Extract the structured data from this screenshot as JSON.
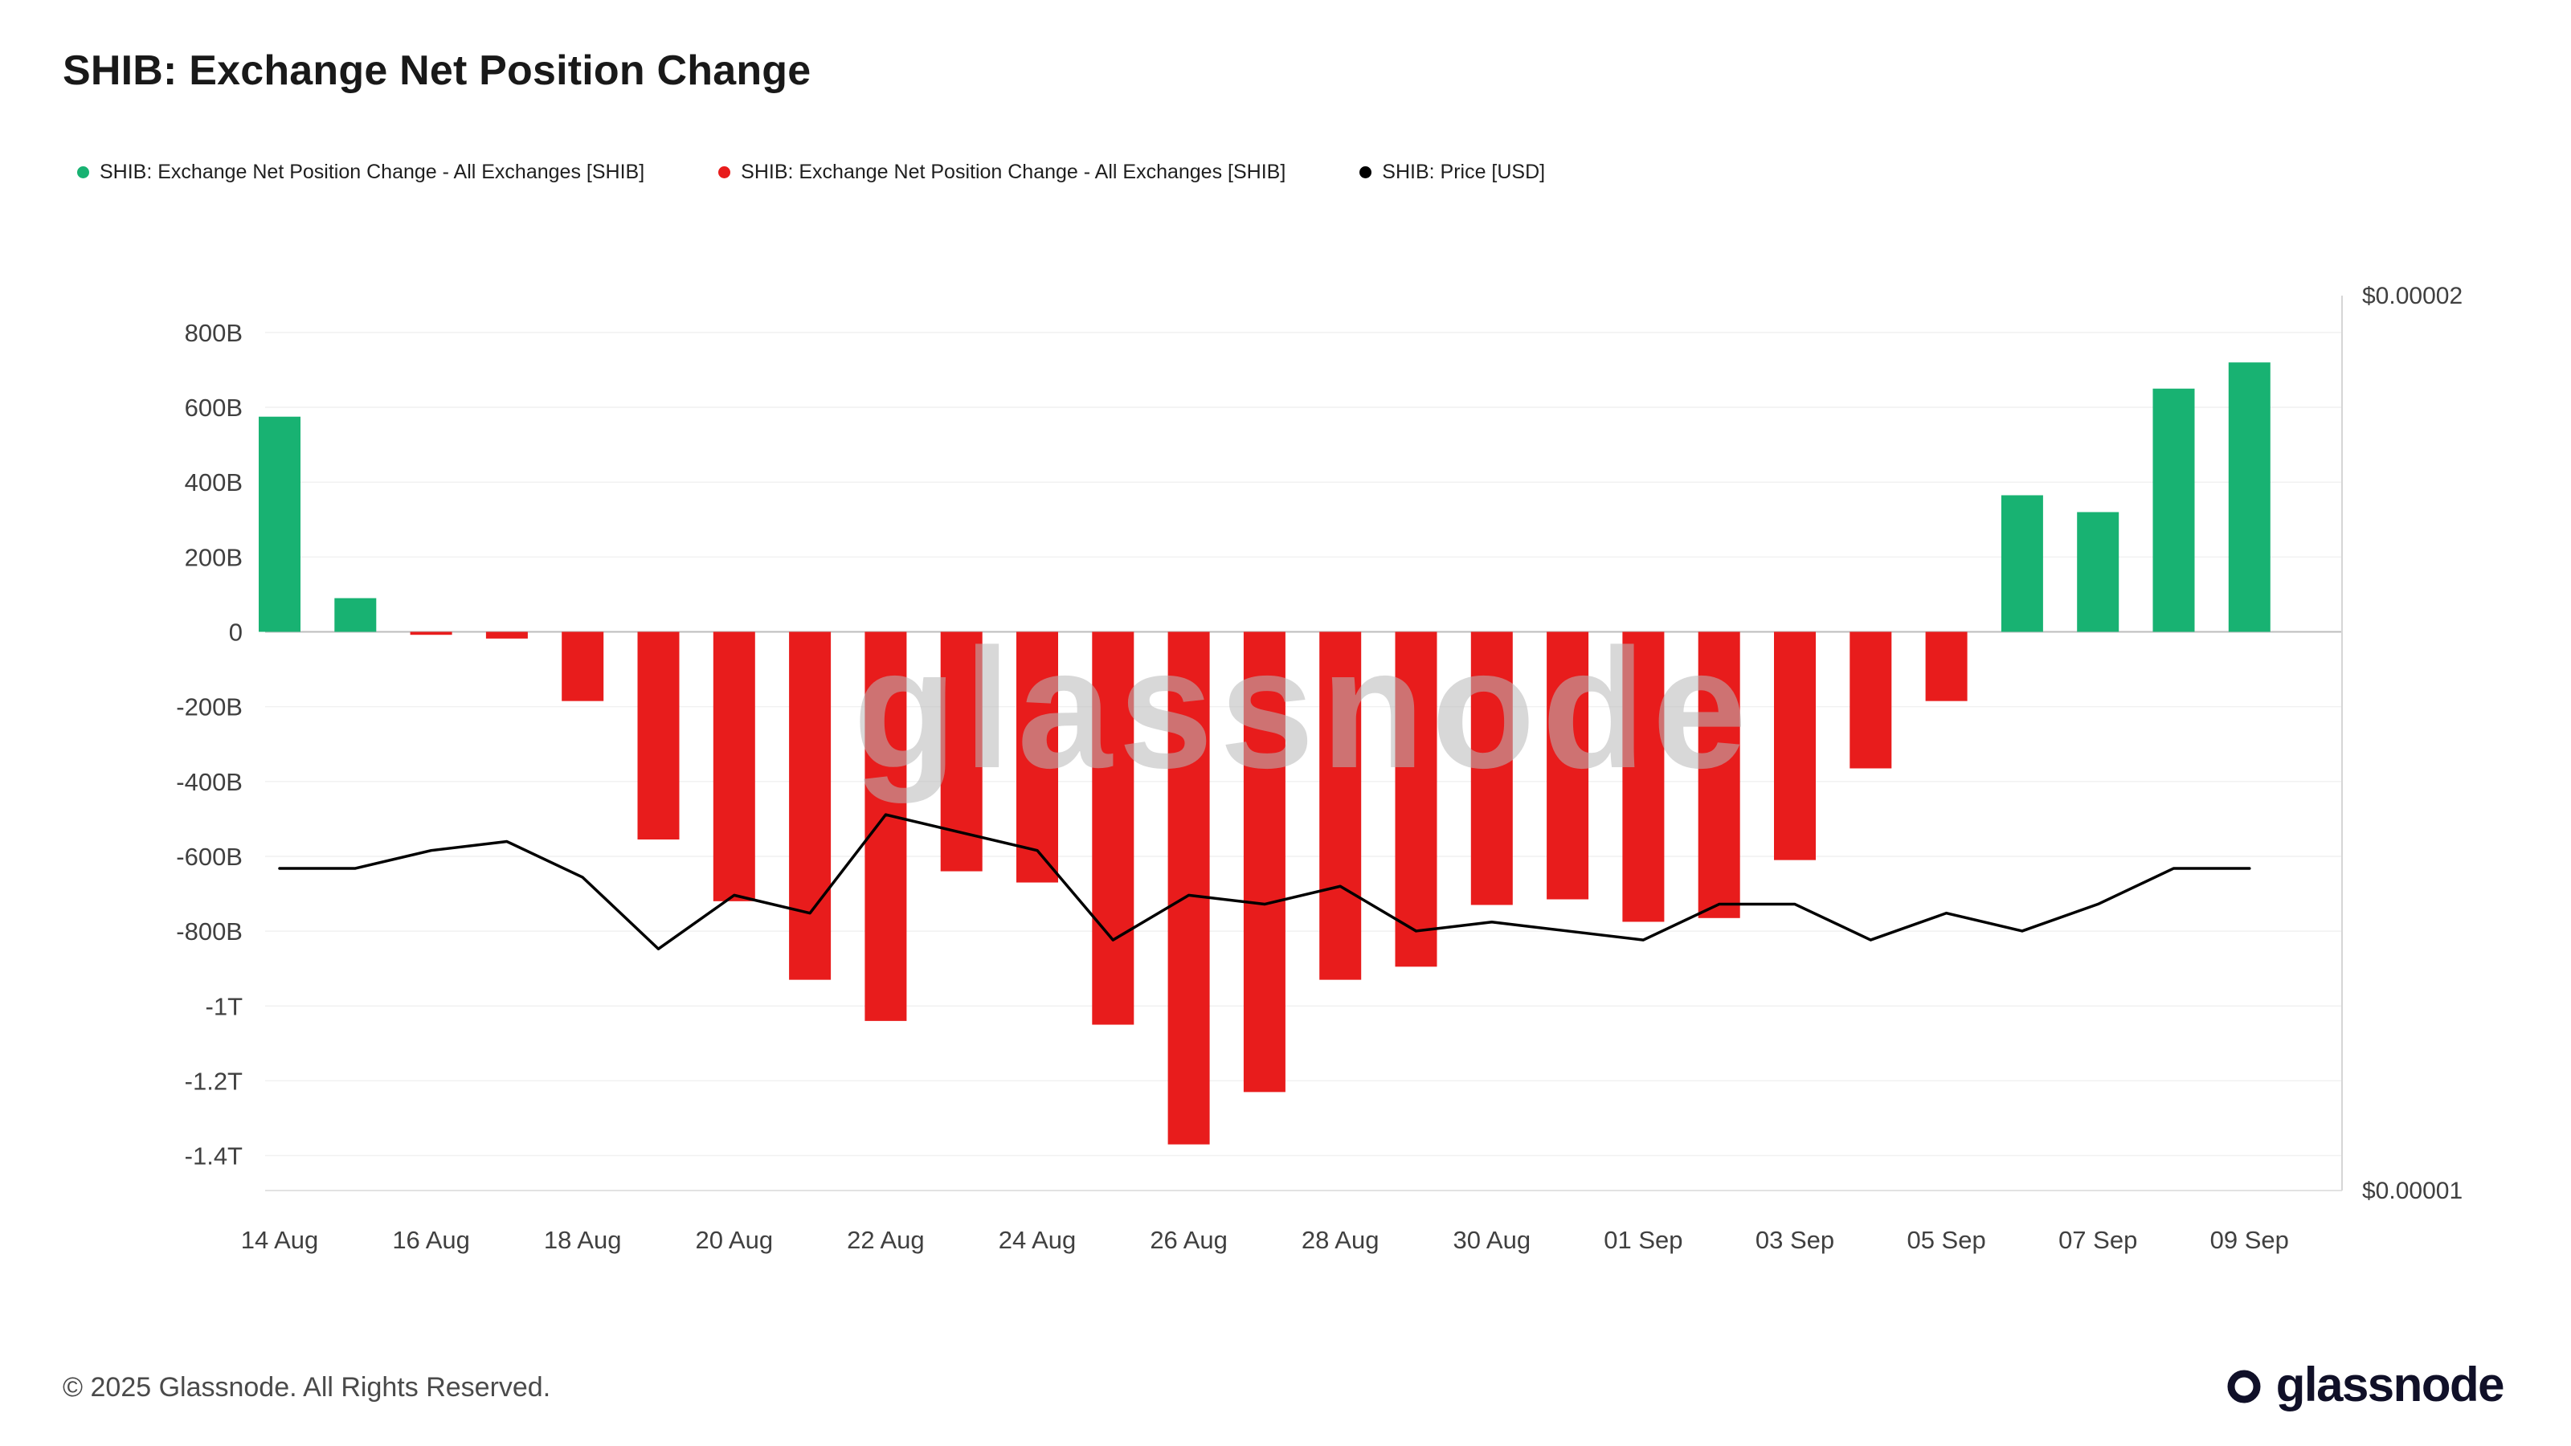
{
  "page": {
    "title": "SHIB: Exchange Net Position Change",
    "watermark": "glassnode",
    "footer": {
      "copyright": "© 2025 Glassnode. All Rights Reserved.",
      "brand": "glassnode"
    }
  },
  "legend": [
    {
      "label": "SHIB: Exchange Net Position Change - All Exchanges [SHIB]",
      "color": "#18b272",
      "series": "positive-net-change"
    },
    {
      "label": "SHIB: Exchange Net Position Change - All Exchanges [SHIB]",
      "color": "#e81c1c",
      "series": "negative-net-change"
    },
    {
      "label": "SHIB: Price [USD]",
      "color": "#000000",
      "series": "price"
    }
  ],
  "chart_data": {
    "type": "bar",
    "title": "SHIB: Exchange Net Position Change",
    "legend_position": "top-left",
    "grid": "horizontal-faint",
    "categories": [
      "14 Aug",
      "15 Aug",
      "16 Aug",
      "17 Aug",
      "18 Aug",
      "19 Aug",
      "20 Aug",
      "21 Aug",
      "22 Aug",
      "23 Aug",
      "24 Aug",
      "25 Aug",
      "26 Aug",
      "27 Aug",
      "28 Aug",
      "29 Aug",
      "30 Aug",
      "31 Aug",
      "01 Sep",
      "02 Sep",
      "03 Sep",
      "04 Sep",
      "05 Sep",
      "06 Sep",
      "07 Sep",
      "08 Sep",
      "09 Sep"
    ],
    "series": [
      {
        "name": "SHIB: Exchange Net Position Change - All Exchanges [SHIB]",
        "type": "bar",
        "axis": "left",
        "unit": "SHIB",
        "positive_color": "#18b272",
        "negative_color": "#e81c1c",
        "values_billions": [
          575,
          90,
          -8,
          -18,
          -185,
          -555,
          -720,
          -930,
          -1040,
          -640,
          -670,
          -1050,
          -1370,
          -1230,
          -930,
          -895,
          -730,
          -715,
          -775,
          -765,
          -610,
          -365,
          -185,
          365,
          320,
          650,
          720
        ]
      },
      {
        "name": "SHIB: Price [USD]",
        "type": "line",
        "axis": "right",
        "color": "#000000",
        "values_usd": [
          1.36e-05,
          1.36e-05,
          1.38e-05,
          1.39e-05,
          1.35e-05,
          1.27e-05,
          1.33e-05,
          1.31e-05,
          1.42e-05,
          1.4e-05,
          1.38e-05,
          1.28e-05,
          1.33e-05,
          1.32e-05,
          1.34e-05,
          1.29e-05,
          1.3e-05,
          1.29e-05,
          1.28e-05,
          1.32e-05,
          1.32e-05,
          1.28e-05,
          1.31e-05,
          1.29e-05,
          1.32e-05,
          1.36e-05,
          1.36e-05
        ]
      }
    ],
    "left_axis": {
      "unit": "SHIB",
      "ticks": [
        "800B",
        "600B",
        "400B",
        "200B",
        "0",
        "-200B",
        "-400B",
        "-600B",
        "-800B",
        "-1T",
        "-1.2T",
        "-1.4T"
      ],
      "tick_values_billions": [
        800,
        600,
        400,
        200,
        0,
        -200,
        -400,
        -600,
        -800,
        -1000,
        -1200,
        -1400
      ]
    },
    "right_axis": {
      "unit": "USD",
      "ticks": [
        "$0.00002",
        "$0.00001"
      ],
      "range_usd": [
        1e-05,
        2e-05
      ]
    },
    "x_axis": {
      "tick_labels": [
        "14 Aug",
        "16 Aug",
        "18 Aug",
        "20 Aug",
        "22 Aug",
        "24 Aug",
        "26 Aug",
        "28 Aug",
        "30 Aug",
        "01 Sep",
        "03 Sep",
        "05 Sep",
        "07 Sep",
        "09 Sep"
      ]
    }
  }
}
